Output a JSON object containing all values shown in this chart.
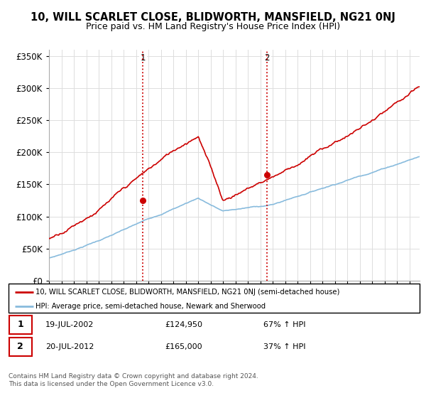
{
  "title": "10, WILL SCARLET CLOSE, BLIDWORTH, MANSFIELD, NG21 0NJ",
  "subtitle": "Price paid vs. HM Land Registry's House Price Index (HPI)",
  "legend_line1": "10, WILL SCARLET CLOSE, BLIDWORTH, MANSFIELD, NG21 0NJ (semi-detached house)",
  "legend_line2": "HPI: Average price, semi-detached house, Newark and Sherwood",
  "purchase1_date": "19-JUL-2002",
  "purchase1_price": "£124,950",
  "purchase1_hpi": "67% ↑ HPI",
  "purchase2_date": "20-JUL-2012",
  "purchase2_price": "£165,000",
  "purchase2_hpi": "37% ↑ HPI",
  "footer": "Contains HM Land Registry data © Crown copyright and database right 2024.\nThis data is licensed under the Open Government Licence v3.0.",
  "hpi_color": "#88bbdd",
  "price_color": "#cc0000",
  "vline_color": "#cc0000",
  "ylim_min": 0,
  "ylim_max": 360000,
  "yticks": [
    0,
    50000,
    100000,
    150000,
    200000,
    250000,
    300000,
    350000
  ],
  "ytick_labels": [
    "£0",
    "£50K",
    "£100K",
    "£150K",
    "£200K",
    "£250K",
    "£300K",
    "£350K"
  ],
  "purchase1_year": 2002.54,
  "purchase1_value": 124950,
  "purchase2_year": 2012.54,
  "purchase2_value": 165000,
  "xmin": 1995,
  "xmax": 2024.8
}
